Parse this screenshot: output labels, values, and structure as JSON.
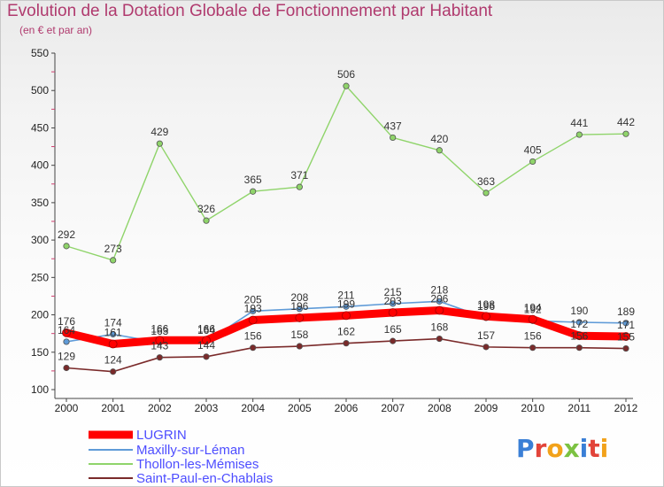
{
  "chart_data": {
    "type": "line",
    "title": "Evolution de la Dotation Globale de Fonctionnement par Habitant",
    "subtitle": "(en € et par an)",
    "xlabel": "",
    "ylabel": "",
    "x": [
      "2000",
      "2001",
      "2002",
      "2003",
      "2004",
      "2005",
      "2006",
      "2007",
      "2008",
      "2009",
      "2010",
      "2011",
      "2012"
    ],
    "ylim": [
      100,
      550
    ],
    "yticks": [
      "100",
      "150",
      "200",
      "250",
      "300",
      "350",
      "400",
      "450",
      "500",
      "550"
    ],
    "grid": false,
    "legend_position": "bottom-left",
    "series": [
      {
        "name": "LUGRIN",
        "color": "#ff0000",
        "values": [
          176,
          161,
          166,
          166,
          193,
          196,
          199,
          203,
          206,
          198,
          194,
          172,
          171
        ],
        "labels": [
          "176",
          "161",
          "166",
          "166",
          "193",
          "196",
          "199",
          "203",
          "206",
          "198",
          "194",
          "172",
          "171"
        ]
      },
      {
        "name": "Maxilly-sur-Léman",
        "color": "#5f9bd8",
        "values": [
          164,
          174,
          163,
          164,
          205,
          208,
          211,
          215,
          218,
          196,
          192,
          190,
          189
        ],
        "labels": [
          "164",
          "174",
          "163",
          "164",
          "205",
          "208",
          "211",
          "215",
          "218",
          "196",
          "192",
          "190",
          "189"
        ]
      },
      {
        "name": "Thollon-les-Mémises",
        "color": "#8fd46a",
        "values": [
          292,
          273,
          429,
          326,
          365,
          371,
          506,
          437,
          420,
          363,
          405,
          441,
          442
        ],
        "labels": [
          "292",
          "273",
          "429",
          "326",
          "365",
          "371",
          "506",
          "437",
          "420",
          "363",
          "405",
          "441",
          "442"
        ]
      },
      {
        "name": "Saint-Paul-en-Chablais",
        "color": "#7a2a2a",
        "values": [
          129,
          124,
          143,
          144,
          156,
          158,
          162,
          165,
          168,
          157,
          156,
          156,
          155
        ],
        "labels": [
          "129",
          "124",
          "143",
          "144",
          "156",
          "158",
          "162",
          "165",
          "168",
          "157",
          "156",
          "156",
          "155"
        ]
      }
    ]
  },
  "logo": {
    "text": "Proxiti"
  }
}
